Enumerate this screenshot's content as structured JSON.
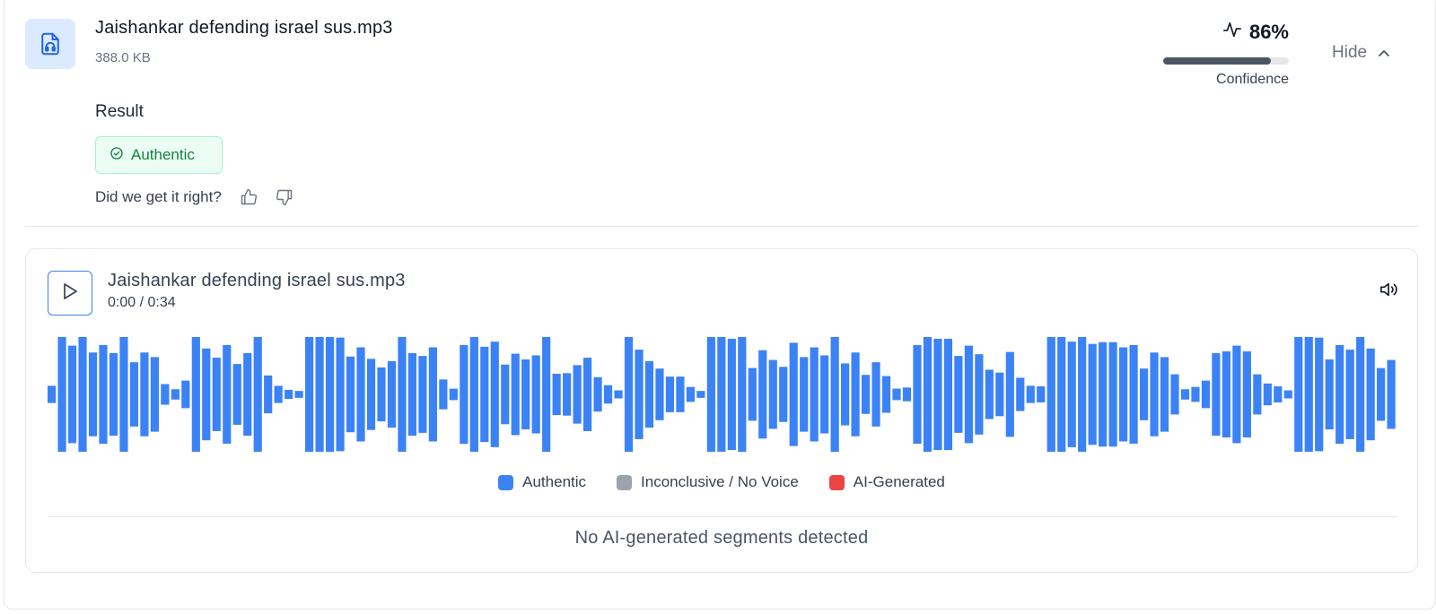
{
  "file": {
    "name": "Jaishankar defending israel sus.mp3",
    "size": "388.0 KB",
    "icon": "audio-file-icon"
  },
  "confidence": {
    "value_text": "86%",
    "value": 0.86,
    "label": "Confidence",
    "icon": "activity-icon"
  },
  "hide_toggle": {
    "label": "Hide",
    "icon": "chevron-up-icon"
  },
  "result": {
    "label": "Result",
    "badge": "Authentic",
    "badge_icon": "check-circle-icon"
  },
  "feedback": {
    "question": "Did we get it right?",
    "icons": [
      "thumbs-up-icon",
      "thumbs-down-icon"
    ]
  },
  "player": {
    "track_name": "Jaishankar defending israel sus.mp3",
    "time": "0:00 / 0:34",
    "play_icon": "play-icon",
    "volume_icon": "volume-icon",
    "waveform": {
      "color": "#3b82f6",
      "levels": [
        0.15,
        1,
        0.85,
        1,
        0.73,
        0.86,
        0.72,
        1,
        0.56,
        0.73,
        0.65,
        0.18,
        0.09,
        0.24,
        1,
        0.8,
        0.64,
        0.86,
        0.53,
        0.72,
        1,
        0.33,
        0.15,
        0.08,
        0.06,
        1,
        1,
        1,
        0.99,
        0.66,
        0.82,
        0.62,
        0.47,
        0.58,
        1,
        0.72,
        0.67,
        0.82,
        0.26,
        0.1,
        0.86,
        1,
        0.83,
        0.92,
        0.52,
        0.71,
        0.61,
        0.68,
        1,
        0.36,
        0.37,
        0.51,
        0.64,
        0.3,
        0.16,
        0.07,
        1,
        0.78,
        0.58,
        0.45,
        0.31,
        0.31,
        0.13,
        0.06,
        1,
        1,
        0.97,
        1,
        0.46,
        0.77,
        0.6,
        0.48,
        0.9,
        0.65,
        0.82,
        0.68,
        1,
        0.54,
        0.73,
        0.34,
        0.56,
        0.32,
        0.1,
        0.12,
        0.86,
        1,
        0.97,
        0.97,
        0.67,
        0.85,
        0.7,
        0.43,
        0.38,
        0.74,
        0.29,
        0.15,
        0.14,
        1,
        1,
        0.92,
        1,
        0.88,
        0.91,
        0.91,
        0.82,
        0.86,
        0.45,
        0.73,
        0.65,
        0.35,
        0.09,
        0.13,
        0.24,
        0.72,
        0.75,
        0.85,
        0.75,
        0.35,
        0.19,
        0.14,
        0.07,
        1,
        1,
        0.99,
        0.61,
        0.86,
        0.78,
        1,
        0.8,
        0.46,
        0.6
      ],
      "legend": [
        {
          "label": "Authentic",
          "color": "#3b82f6"
        },
        {
          "label": "Inconclusive / No Voice",
          "color": "#9ca3af"
        },
        {
          "label": "AI-Generated",
          "color": "#ef4444"
        }
      ]
    },
    "status": "No AI-generated segments detected"
  }
}
